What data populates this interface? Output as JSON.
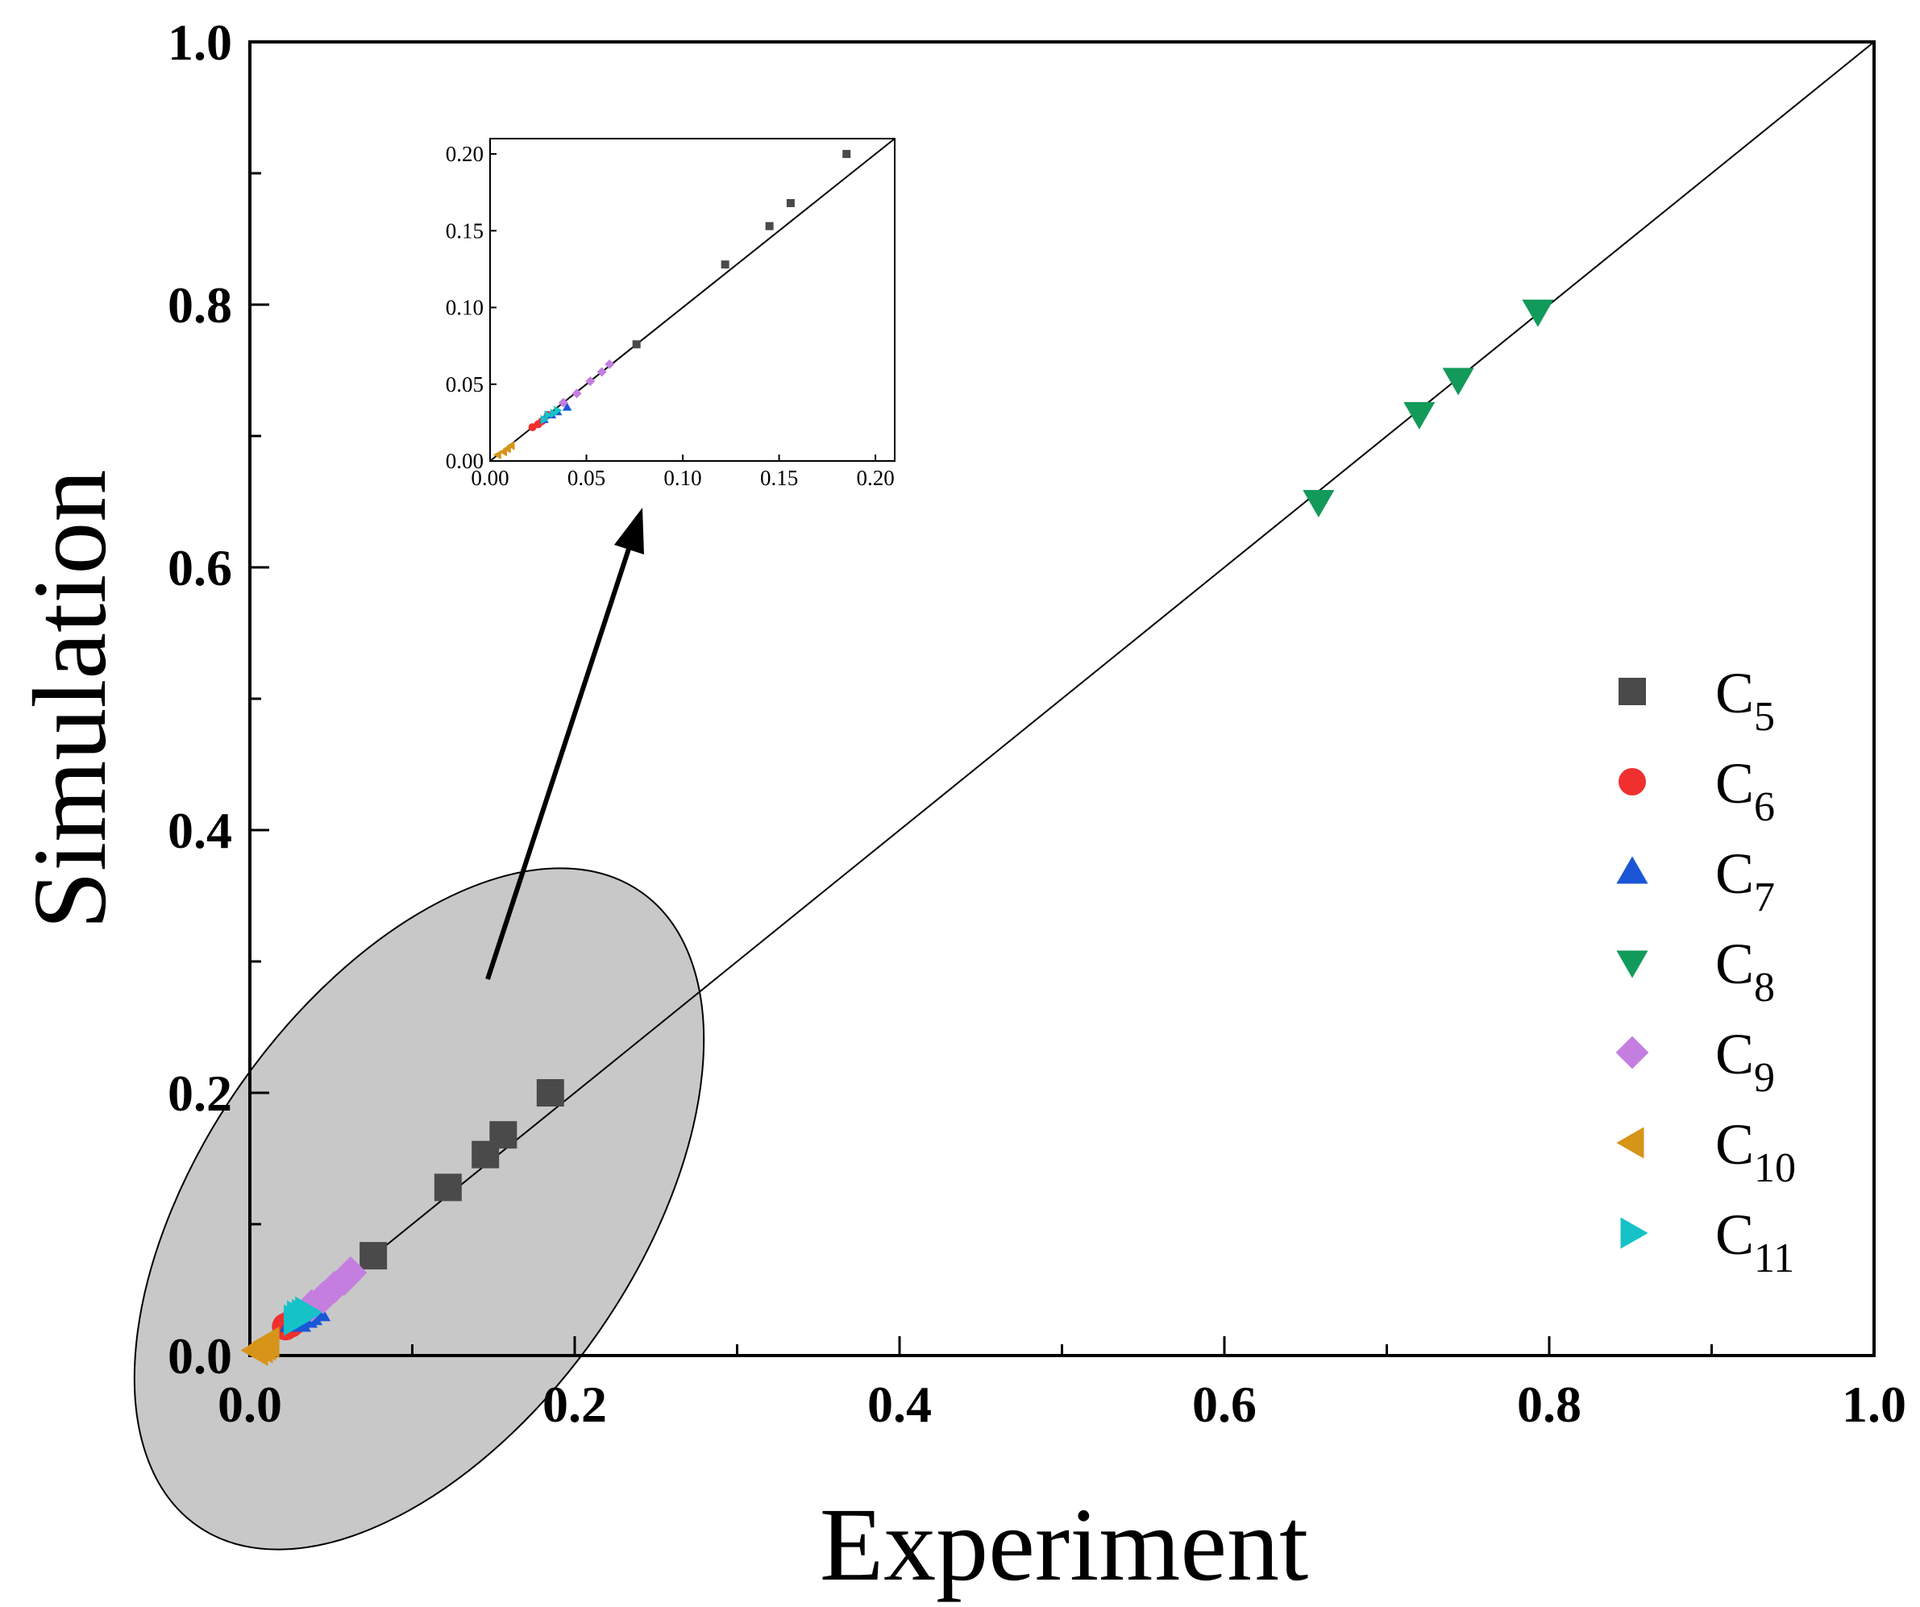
{
  "chart_data": {
    "type": "scatter",
    "title": "",
    "xlabel": "Experiment",
    "ylabel": "Simulation",
    "xlim": [
      0,
      1.0
    ],
    "ylim": [
      0,
      1.0
    ],
    "x_ticks": [
      "0.0",
      "0.2",
      "0.4",
      "0.6",
      "0.8",
      "1.0"
    ],
    "y_ticks": [
      "0.0",
      "0.2",
      "0.4",
      "0.6",
      "0.8",
      "1.0"
    ],
    "reference_line": "y = x",
    "legend_position": "right",
    "series": [
      {
        "name": "C5",
        "base": "C",
        "sub": "5",
        "marker": "square",
        "color": "#4a4a4a",
        "points": [
          [
            0.076,
            0.076
          ],
          [
            0.122,
            0.128
          ],
          [
            0.145,
            0.153
          ],
          [
            0.156,
            0.168
          ],
          [
            0.185,
            0.2
          ]
        ]
      },
      {
        "name": "C6",
        "base": "C",
        "sub": "6",
        "marker": "circle",
        "color": "#f0302f",
        "points": [
          [
            0.022,
            0.022
          ],
          [
            0.025,
            0.024
          ],
          [
            0.027,
            0.026
          ],
          [
            0.03,
            0.03
          ]
        ]
      },
      {
        "name": "C7",
        "base": "C",
        "sub": "7",
        "marker": "triangle-up",
        "color": "#1a56d6",
        "points": [
          [
            0.028,
            0.027
          ],
          [
            0.032,
            0.03
          ],
          [
            0.035,
            0.032
          ],
          [
            0.04,
            0.035
          ]
        ]
      },
      {
        "name": "C8",
        "base": "C",
        "sub": "8",
        "marker": "triangle-down",
        "color": "#129a5a",
        "points": [
          [
            0.658,
            0.65
          ],
          [
            0.72,
            0.717
          ],
          [
            0.744,
            0.743
          ],
          [
            0.793,
            0.795
          ]
        ]
      },
      {
        "name": "C9",
        "base": "C",
        "sub": "9",
        "marker": "diamond",
        "color": "#c47ee0",
        "points": [
          [
            0.038,
            0.038
          ],
          [
            0.045,
            0.044
          ],
          [
            0.052,
            0.052
          ],
          [
            0.058,
            0.058
          ],
          [
            0.062,
            0.063
          ]
        ]
      },
      {
        "name": "C10",
        "base": "C",
        "sub": "10",
        "marker": "triangle-left",
        "color": "#d69418",
        "points": [
          [
            0.004,
            0.004
          ],
          [
            0.007,
            0.006
          ],
          [
            0.009,
            0.008
          ],
          [
            0.011,
            0.01
          ]
        ]
      },
      {
        "name": "C11",
        "base": "C",
        "sub": "11",
        "marker": "triangle-right",
        "color": "#14c2c8",
        "points": [
          [
            0.028,
            0.027
          ],
          [
            0.03,
            0.03
          ],
          [
            0.033,
            0.031
          ],
          [
            0.035,
            0.033
          ]
        ]
      }
    ],
    "inset": {
      "xlim": [
        0,
        0.21
      ],
      "ylim": [
        0,
        0.21
      ],
      "x_ticks": [
        "0.00",
        "0.05",
        "0.10",
        "0.15",
        "0.20"
      ],
      "y_ticks": [
        "0.00",
        "0.05",
        "0.10",
        "0.15",
        "0.20"
      ]
    },
    "highlight_region": {
      "shape": "ellipse",
      "fill": "#c8c8c8",
      "note": "zoomed region shown in inset"
    }
  }
}
